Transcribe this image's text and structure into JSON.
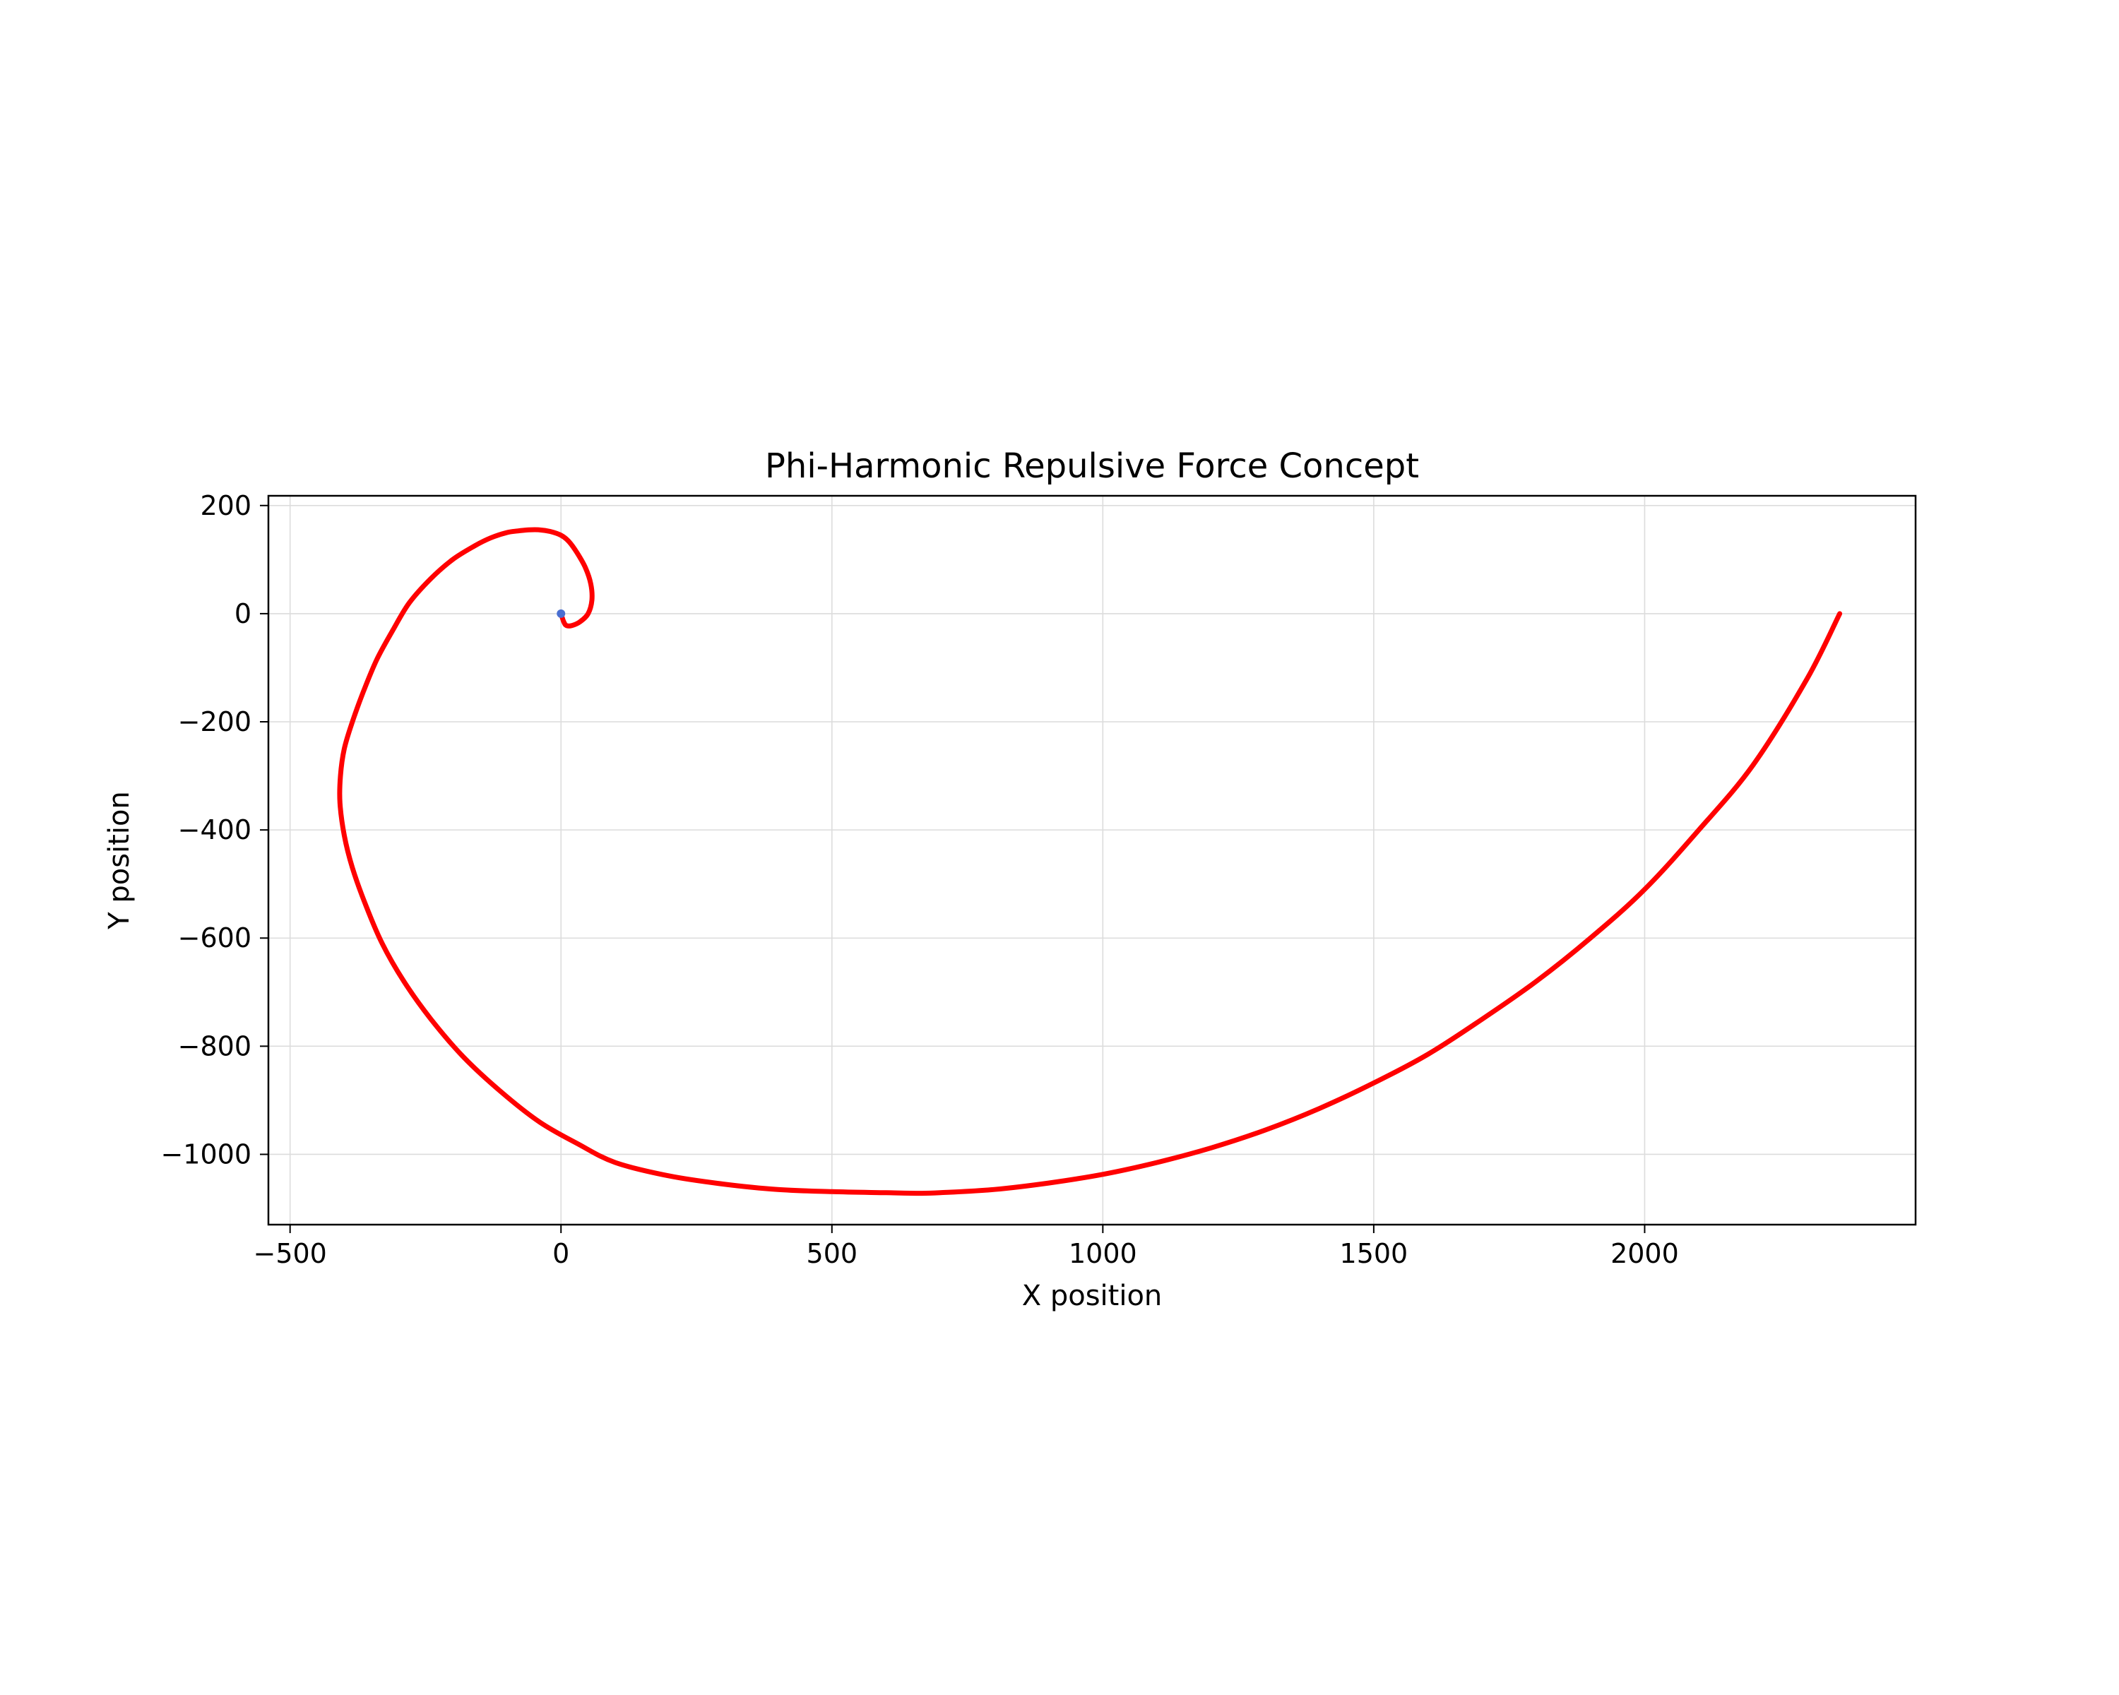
{
  "chart_data": {
    "type": "line",
    "title": "Phi-Harmonic Repulsive Force Concept",
    "xlabel": "X position",
    "ylabel": "Y position",
    "xlim": [
      -540,
      2500
    ],
    "ylim": [
      -1130,
      218
    ],
    "xticks": [
      -500,
      0,
      500,
      1000,
      1500,
      2000
    ],
    "xtick_labels": [
      "−500",
      "0",
      "500",
      "1000",
      "1500",
      "2000"
    ],
    "yticks": [
      200,
      0,
      -200,
      -400,
      -600,
      -800,
      -1000
    ],
    "ytick_labels": [
      "200",
      "0",
      "−200",
      "−400",
      "−600",
      "−800",
      "−1000"
    ],
    "grid": true,
    "series": [
      {
        "color": "#ff0000",
        "x": [
          0,
          5,
          10,
          20,
          35,
          50,
          57,
          55,
          45,
          30,
          15,
          0,
          -20,
          -40,
          -60,
          -80,
          -100,
          -130,
          -160,
          -200,
          -240,
          -280,
          -310,
          -340,
          -365,
          -385,
          -400,
          -407,
          -408,
          -400,
          -385,
          -360,
          -330,
          -290,
          -240,
          -180,
          -110,
          -40,
          30,
          100,
          200,
          300,
          400,
          500,
          600,
          662,
          700,
          800,
          900,
          1000,
          1100,
          1200,
          1300,
          1400,
          1500,
          1600,
          1700,
          1800,
          1900,
          2000,
          2100,
          2200,
          2300,
          2360
        ],
        "y": [
          0,
          -15,
          -22,
          -22,
          -15,
          0,
          25,
          55,
          85,
          112,
          133,
          145,
          152,
          155,
          155,
          153,
          150,
          140,
          125,
          100,
          65,
          20,
          -30,
          -85,
          -145,
          -200,
          -250,
          -300,
          -350,
          -410,
          -470,
          -540,
          -610,
          -680,
          -750,
          -820,
          -885,
          -940,
          -980,
          -1015,
          -1040,
          -1055,
          -1065,
          -1069,
          -1071,
          -1072,
          -1071,
          -1065,
          -1053,
          -1037,
          -1015,
          -988,
          -955,
          -915,
          -868,
          -815,
          -750,
          -680,
          -600,
          -510,
          -400,
          -280,
          -120,
          0
        ]
      }
    ],
    "markers": [
      {
        "x": 0,
        "y": 0,
        "color": "#4a6fd1"
      }
    ]
  }
}
